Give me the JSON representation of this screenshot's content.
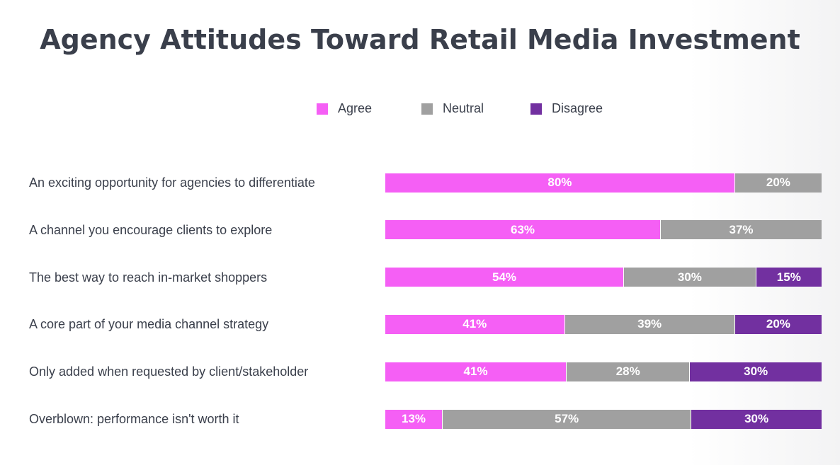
{
  "colors": {
    "agree": "#f55ff5",
    "neutral": "#a0a0a0",
    "disagree": "#7230a0"
  },
  "chart_data": {
    "type": "bar",
    "orientation": "horizontal",
    "stacked": true,
    "title": "Agency Attitudes Toward Retail Media Investment",
    "legend": [
      "Agree",
      "Neutral",
      "Disagree"
    ],
    "legend_position": "top-center",
    "categories": [
      "An exciting opportunity for agencies to differentiate",
      "A channel you encourage clients to explore",
      "The best way to reach in-market shoppers",
      "A core part of your media channel strategy",
      "Only added when requested by client/stakeholder",
      "Overblown: performance isn't worth it"
    ],
    "series": [
      {
        "name": "Agree",
        "values": [
          80,
          63,
          54,
          41,
          41,
          13
        ]
      },
      {
        "name": "Neutral",
        "values": [
          20,
          37,
          30,
          39,
          28,
          57
        ]
      },
      {
        "name": "Disagree",
        "values": [
          0,
          0,
          15,
          20,
          30,
          30
        ]
      }
    ],
    "value_suffix": "%"
  }
}
